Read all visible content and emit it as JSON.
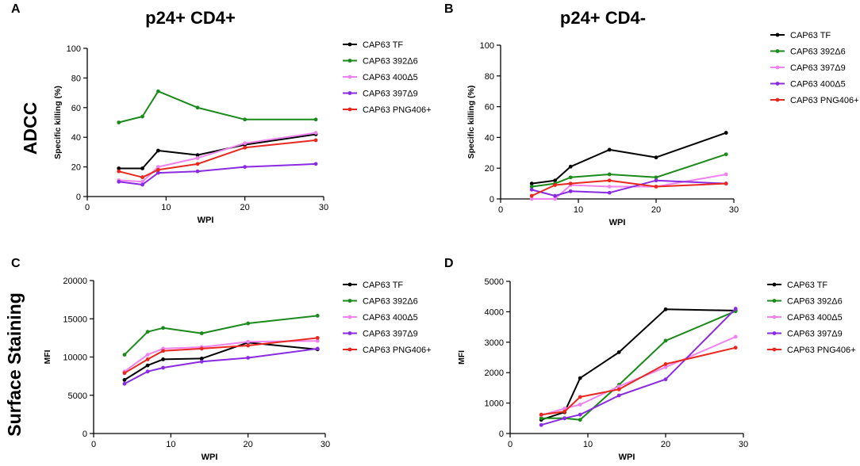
{
  "figure": {
    "row_labels": [
      "ADCC",
      "Surface Staining"
    ],
    "legend_entries": [
      "CAP63 TF",
      "CAP63 392Δ6",
      "CAP63 400Δ5",
      "CAP63 397Δ9",
      "CAP63 PNG406+"
    ],
    "legend_entries_b": [
      "CAP63 TF",
      "CAP63 392Δ6",
      "CAP63 397Δ9",
      "CAP63 400Δ5",
      "CAP63 PNG406+"
    ]
  },
  "colors": {
    "tf": "#000000",
    "d392": "#1a8a1a",
    "d400": "#ee82ee",
    "d397": "#8a2be2",
    "png": "#e8281e"
  },
  "chart_data": [
    {
      "panel": "A",
      "type": "line",
      "title": "p24+ CD4+",
      "xlabel": "WPI",
      "ylabel": "Specific killing (%)",
      "xlim": [
        0,
        30
      ],
      "ylim": [
        0,
        100
      ],
      "xticks": [
        0,
        10,
        20,
        30
      ],
      "yticks": [
        0,
        20,
        40,
        60,
        80,
        100
      ],
      "x": [
        4,
        7,
        9,
        14,
        20,
        29
      ],
      "series": [
        {
          "name": "CAP63 TF",
          "color_key": "tf",
          "values": [
            19,
            19,
            31,
            28,
            35,
            42
          ]
        },
        {
          "name": "CAP63 392Δ6",
          "color_key": "d392",
          "values": [
            50,
            54,
            71,
            60,
            52,
            52
          ]
        },
        {
          "name": "CAP63 400Δ5",
          "color_key": "d400",
          "values": [
            11,
            10,
            20,
            26,
            36,
            43
          ]
        },
        {
          "name": "CAP63 397Δ9",
          "color_key": "d397",
          "values": [
            10,
            8,
            16,
            17,
            20,
            22
          ]
        },
        {
          "name": "CAP63 PNG406+",
          "color_key": "png",
          "values": [
            17,
            13,
            18,
            22,
            33,
            38
          ]
        }
      ]
    },
    {
      "panel": "B",
      "type": "line",
      "title": "p24+ CD4-",
      "xlabel": "WPI",
      "ylabel": "Specific killing (%)",
      "xlim": [
        0,
        30
      ],
      "ylim": [
        0,
        100
      ],
      "xticks": [
        0,
        10,
        20,
        30
      ],
      "yticks": [
        0,
        20,
        40,
        60,
        80,
        100
      ],
      "x": [
        4,
        7,
        9,
        14,
        20,
        29
      ],
      "series": [
        {
          "name": "CAP63 TF",
          "color_key": "tf",
          "values": [
            10,
            12,
            21,
            32,
            27,
            43
          ]
        },
        {
          "name": "CAP63 392Δ6",
          "color_key": "d392",
          "values": [
            8,
            10,
            14,
            16,
            14,
            29
          ]
        },
        {
          "name": "CAP63 397Δ9",
          "color_key": "d400",
          "values": [
            0,
            0,
            9,
            8,
            8,
            16
          ]
        },
        {
          "name": "CAP63 400Δ5",
          "color_key": "d397",
          "values": [
            6,
            2,
            5,
            4,
            12,
            10
          ]
        },
        {
          "name": "CAP63 PNG406+",
          "color_key": "png",
          "values": [
            2,
            9,
            10,
            12,
            8,
            10
          ]
        }
      ]
    },
    {
      "panel": "C",
      "type": "line",
      "title": "",
      "xlabel": "WPI",
      "ylabel": "MFI",
      "xlim": [
        0,
        30
      ],
      "ylim": [
        0,
        20000
      ],
      "xticks": [
        0,
        10,
        20,
        30
      ],
      "yticks": [
        0,
        5000,
        10000,
        15000,
        20000
      ],
      "x": [
        4,
        7,
        9,
        14,
        20,
        29
      ],
      "series": [
        {
          "name": "CAP63 TF",
          "color_key": "tf",
          "values": [
            7000,
            8900,
            9700,
            9800,
            11900,
            11000
          ]
        },
        {
          "name": "CAP63 392Δ6",
          "color_key": "d392",
          "values": [
            10300,
            13300,
            13800,
            13100,
            14400,
            15400
          ]
        },
        {
          "name": "CAP63 400Δ5",
          "color_key": "d400",
          "values": [
            8100,
            10300,
            11100,
            11300,
            12000,
            12100
          ]
        },
        {
          "name": "CAP63 397Δ9",
          "color_key": "d397",
          "values": [
            6500,
            8100,
            8600,
            9400,
            9900,
            11100
          ]
        },
        {
          "name": "CAP63 PNG406+",
          "color_key": "png",
          "values": [
            7900,
            9700,
            10800,
            11100,
            11500,
            12500
          ]
        }
      ]
    },
    {
      "panel": "D",
      "type": "line",
      "title": "",
      "xlabel": "WPI",
      "ylabel": "MFI",
      "xlim": [
        0,
        30
      ],
      "ylim": [
        0,
        5000
      ],
      "xticks": [
        0,
        10,
        20,
        30
      ],
      "yticks": [
        0,
        1000,
        2000,
        3000,
        4000,
        5000
      ],
      "x": [
        4,
        7,
        9,
        14,
        20,
        29
      ],
      "series": [
        {
          "name": "CAP63 TF",
          "color_key": "tf",
          "values": [
            450,
            700,
            1820,
            2670,
            4080,
            4040
          ]
        },
        {
          "name": "CAP63 392Δ6",
          "color_key": "d392",
          "values": [
            500,
            500,
            450,
            1600,
            3050,
            4020
          ]
        },
        {
          "name": "CAP63 400Δ5",
          "color_key": "d400",
          "values": [
            600,
            820,
            950,
            1550,
            2180,
            3180
          ]
        },
        {
          "name": "CAP63 397Δ9",
          "color_key": "d397",
          "values": [
            280,
            500,
            620,
            1250,
            1780,
            4100
          ]
        },
        {
          "name": "CAP63 PNG406+",
          "color_key": "png",
          "values": [
            620,
            720,
            1200,
            1450,
            2280,
            2820
          ]
        }
      ]
    }
  ]
}
